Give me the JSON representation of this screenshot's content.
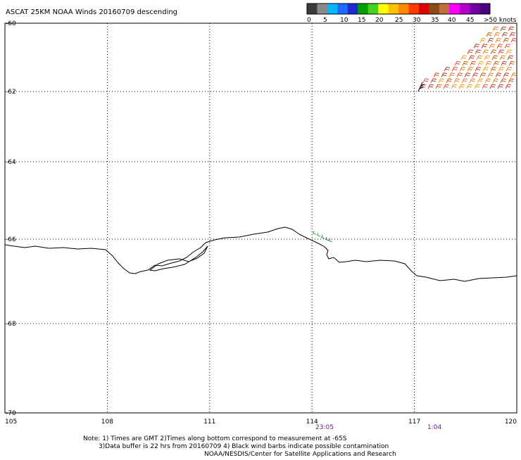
{
  "title": "ASCAT 25KM NOAA Winds 20160709 descending",
  "colorbar": {
    "colors": [
      "#3a3a3a",
      "#8a8a8a",
      "#00b7ff",
      "#1e6bff",
      "#1c2bd6",
      "#00a000",
      "#46d21e",
      "#ffff00",
      "#ffc000",
      "#ff8a00",
      "#ff3c00",
      "#e00000",
      "#8b4a1a",
      "#c07040",
      "#ff00ff",
      "#b400c8",
      "#7000a0",
      "#4a0080"
    ],
    "labels": [
      "0",
      "5",
      "10",
      "15",
      "20",
      "25",
      "30",
      "35",
      "40",
      "45",
      ">50 knots"
    ]
  },
  "axes": {
    "lat_labels": [
      "-60",
      "-62",
      "-64",
      "-66",
      "-68",
      "-70"
    ],
    "lon_labels": [
      "105",
      "108",
      "111",
      "114",
      "117",
      "120"
    ]
  },
  "pass_times": [
    "23:05",
    "1:04"
  ],
  "notes": [
    "Note: 1) Times are GMT 2)Times along bottom correspond to measurement at -65S",
    "3)Data buffer is 22 hrs from 20160709 4) Black wind barbs indicate possible contamination",
    "NOAA/NESDIS/Center for Satellite Applications and Research"
  ],
  "map": {
    "lon_range": [
      105,
      120
    ],
    "lat_range": [
      -70,
      -60
    ],
    "grid": "dotted",
    "coastline_color": "#000000",
    "barb_colors": [
      "#c0392b",
      "#d35400",
      "#e67e22",
      "#b03a2e",
      "#e74c3c",
      "#f39c12"
    ]
  }
}
